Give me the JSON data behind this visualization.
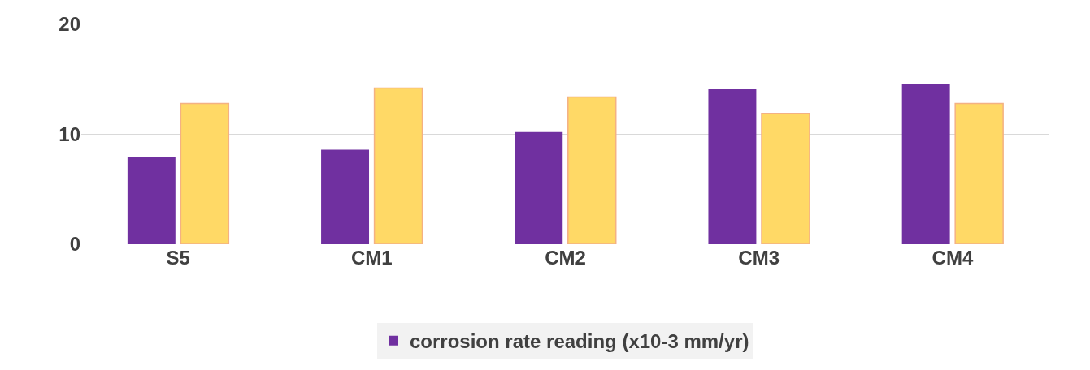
{
  "chart_data": {
    "type": "bar",
    "categories": [
      "S5",
      "CM1",
      "CM2",
      "CM3",
      "CM4"
    ],
    "series": [
      {
        "name": "corrosion rate reading (x10-3 mm/yr)",
        "color": "#7030a0",
        "values": [
          7.9,
          8.6,
          10.2,
          14.1,
          14.6
        ]
      },
      {
        "color": "#ffd966",
        "values": [
          12.8,
          14.2,
          13.4,
          11.9,
          12.8
        ]
      }
    ],
    "ylim": [
      0,
      20
    ],
    "yticks": [
      0,
      10,
      20
    ],
    "grid": "y",
    "legend": "bottom"
  }
}
